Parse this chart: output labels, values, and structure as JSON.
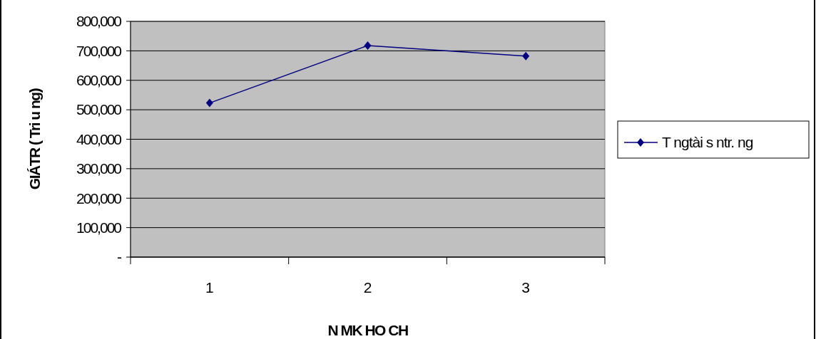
{
  "chart_data": {
    "type": "line",
    "xlabel": "N MK  HO CH",
    "ylabel": "GIÁTR ( Tri u    ng)",
    "categories": [
      "1",
      "2",
      "3"
    ],
    "series": [
      {
        "name": "T ngtài s ntr.   ng",
        "color": "#000080",
        "values": [
          523000,
          718000,
          682000
        ]
      }
    ],
    "ylim": [
      0,
      800000
    ],
    "yticks": [
      {
        "value": 0,
        "label": "-"
      },
      {
        "value": 100000,
        "label": "100,000"
      },
      {
        "value": 200000,
        "label": "200,000"
      },
      {
        "value": 300000,
        "label": "300,000"
      },
      {
        "value": 400000,
        "label": "400,000"
      },
      {
        "value": 500000,
        "label": "500,000"
      },
      {
        "value": 600000,
        "label": "600,000"
      },
      {
        "value": 700000,
        "label": "700,000"
      },
      {
        "value": 800000,
        "label": "800,000"
      }
    ],
    "grid": "y",
    "legend": "right",
    "marker": "diamond",
    "line_style": "solid"
  }
}
